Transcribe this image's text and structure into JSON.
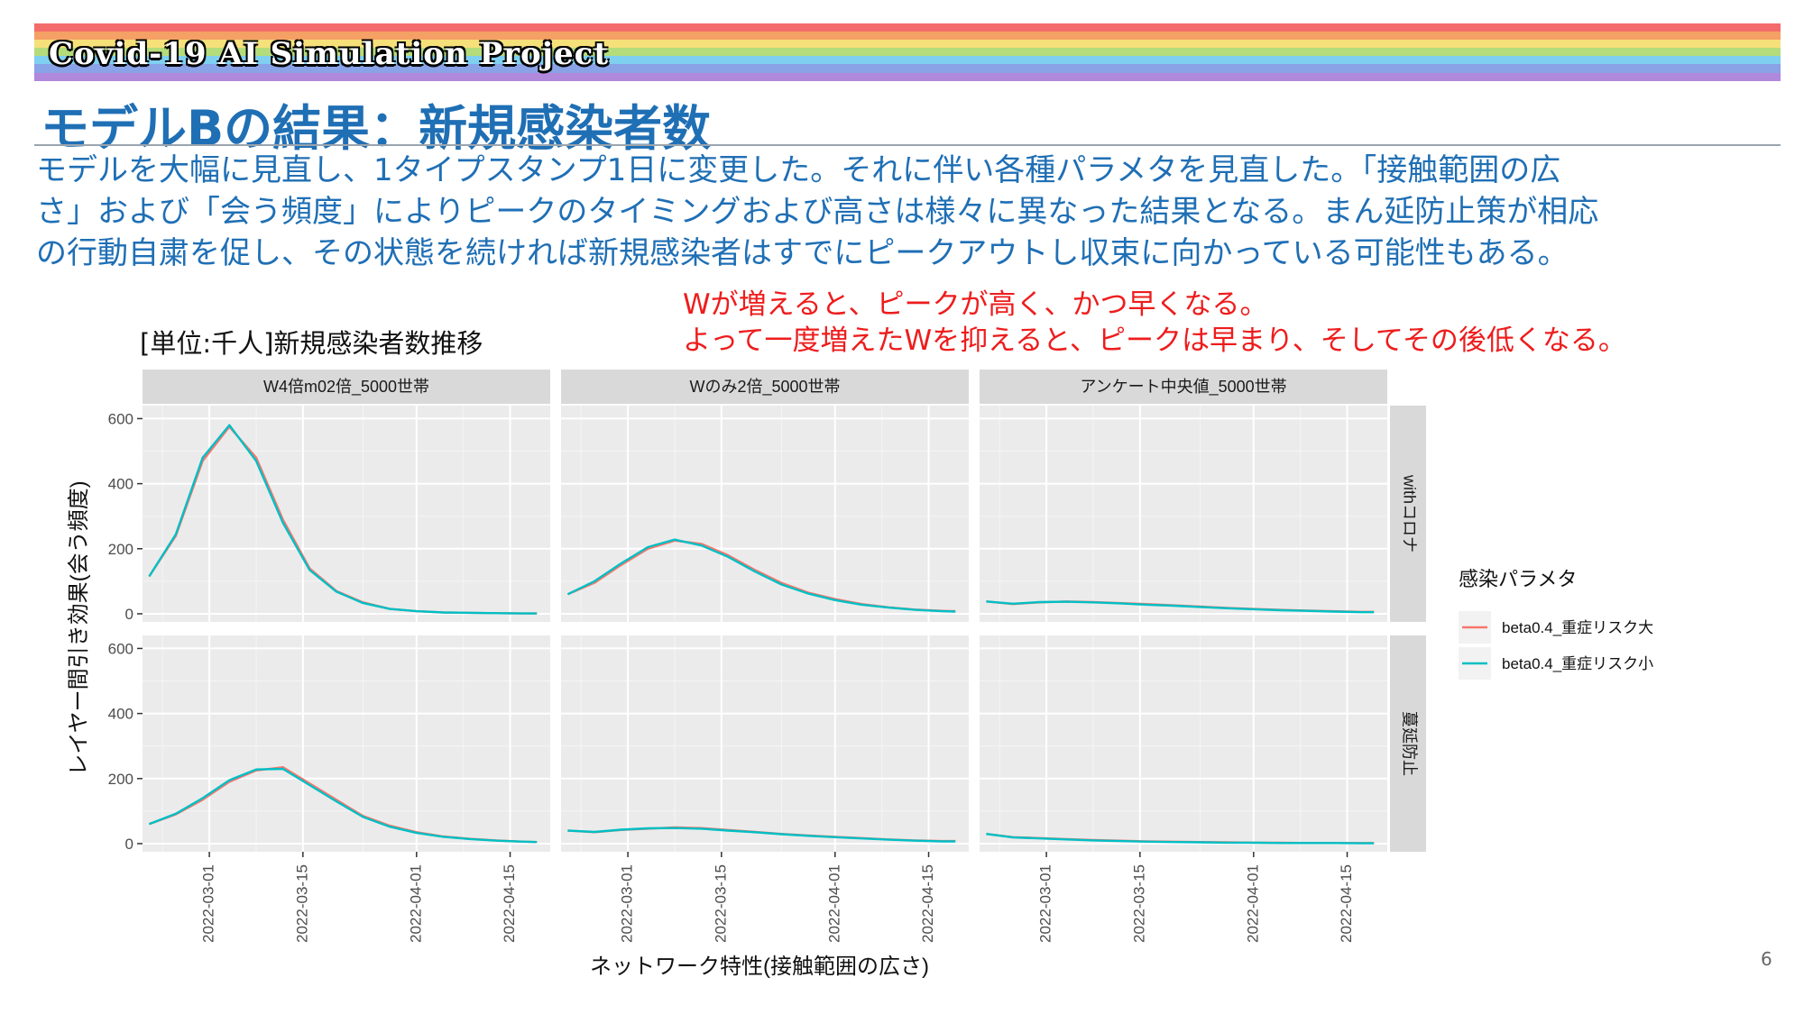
{
  "banner": {
    "title": "Covid-19 AI Simulation Project",
    "stripes": [
      "#f36b6b",
      "#f5a064",
      "#f6e07a",
      "#b5dc7a",
      "#7fcff0",
      "#8aa2e6",
      "#b088dc"
    ]
  },
  "slide_title": "モデルBの結果：新規感染者数",
  "body_lines": [
    "モデルを大幅に見直し、1タイプスタンプ1日に変更した。それに伴い各種パラメタを見直した。「接触範囲の広",
    "さ」および「会う頻度」によりピークのタイミングおよび高さは様々に異なった結果となる。まん延防止策が相応",
    "の行動自粛を促し、その状態を続ければ新規感染者はすでにピークアウトし収束に向かっている可能性もある。"
  ],
  "notes": [
    "Wが増えると、ピークが高く、かつ早くなる。",
    "よって一度増えたWを抑えると、ピークは早まり、そしてその後低くなる。"
  ],
  "page_number": "6",
  "colors": {
    "accent": "#1F6FB5",
    "note": "#ee1c1c",
    "series_a": "#F8766D",
    "series_b": "#00BFC4"
  },
  "chart_data": {
    "type": "line",
    "title": "[単位:千人]新規感染者数推移",
    "xlabel": "ネットワーク特性(接触範囲の広さ)",
    "ylabel": "レイヤー間引き効果(会う頻度)",
    "x_ticks": [
      "2022-03-01",
      "2022-03-15",
      "2022-04-01",
      "2022-04-15"
    ],
    "x_range": [
      "2022-02-19",
      "2022-04-21"
    ],
    "y_ticks": [
      0,
      200,
      400,
      600
    ],
    "ylim": [
      -25,
      640
    ],
    "col_facets": [
      "W4倍m02倍_5000世帯",
      "Wのみ2倍_5000世帯",
      "アンケート中央値_5000世帯"
    ],
    "row_facets": [
      "withコロナ",
      "蔓延防止"
    ],
    "legend": {
      "title": "感染パラメタ",
      "position": "right",
      "entries": [
        "beta0.4_重症リスク大",
        "beta0.4_重症リスク小"
      ]
    },
    "dates": [
      "2022-02-20",
      "2022-02-24",
      "2022-02-28",
      "2022-03-04",
      "2022-03-08",
      "2022-03-12",
      "2022-03-16",
      "2022-03-20",
      "2022-03-24",
      "2022-03-28",
      "2022-04-01",
      "2022-04-05",
      "2022-04-09",
      "2022-04-13",
      "2022-04-17",
      "2022-04-19"
    ],
    "panels": [
      {
        "row": "withコロナ",
        "col": "W4倍m02倍_5000世帯",
        "series": [
          {
            "name": "beta0.4_重症リスク大",
            "values": [
              115,
              240,
              470,
              575,
              480,
              290,
              140,
              70,
              35,
              15,
              8,
              4,
              3,
              2,
              1,
              1
            ]
          },
          {
            "name": "beta0.4_重症リスク小",
            "values": [
              115,
              245,
              480,
              580,
              470,
              280,
              135,
              68,
              33,
              15,
              8,
              4,
              3,
              2,
              1,
              1
            ]
          }
        ]
      },
      {
        "row": "withコロナ",
        "col": "Wのみ2倍_5000世帯",
        "series": [
          {
            "name": "beta0.4_重症リスク大",
            "values": [
              60,
              95,
              150,
              200,
              225,
              215,
              180,
              135,
              95,
              65,
              45,
              30,
              20,
              13,
              9,
              8
            ]
          },
          {
            "name": "beta0.4_重症リスク小",
            "values": [
              60,
              100,
              155,
              205,
              228,
              210,
              175,
              130,
              90,
              62,
              42,
              28,
              19,
              12,
              8,
              7
            ]
          }
        ]
      },
      {
        "row": "withコロナ",
        "col": "アンケート中央値_5000世帯",
        "series": [
          {
            "name": "beta0.4_重症リスク大",
            "values": [
              38,
              30,
              35,
              38,
              36,
              33,
              30,
              26,
              22,
              18,
              15,
              12,
              10,
              8,
              6,
              6
            ]
          },
          {
            "name": "beta0.4_重症リスク小",
            "values": [
              38,
              31,
              36,
              37,
              35,
              32,
              28,
              25,
              21,
              17,
              14,
              11,
              9,
              7,
              5,
              5
            ]
          }
        ]
      },
      {
        "row": "蔓延防止",
        "col": "W4倍m02倍_5000世帯",
        "series": [
          {
            "name": "beta0.4_重症リスク大",
            "values": [
              60,
              90,
              135,
              190,
              225,
              235,
              185,
              135,
              85,
              55,
              35,
              22,
              15,
              10,
              6,
              5
            ]
          },
          {
            "name": "beta0.4_重症リスク小",
            "values": [
              60,
              92,
              140,
              195,
              228,
              230,
              180,
              130,
              82,
              52,
              33,
              21,
              14,
              9,
              6,
              5
            ]
          }
        ]
      },
      {
        "row": "蔓延防止",
        "col": "Wのみ2倍_5000世帯",
        "series": [
          {
            "name": "beta0.4_重症リスク大",
            "values": [
              40,
              35,
              42,
              46,
              50,
              48,
              42,
              36,
              30,
              25,
              21,
              17,
              13,
              10,
              8,
              8
            ]
          },
          {
            "name": "beta0.4_重症リスク小",
            "values": [
              40,
              36,
              43,
              47,
              48,
              46,
              40,
              35,
              29,
              24,
              20,
              16,
              12,
              9,
              7,
              7
            ]
          }
        ]
      },
      {
        "row": "蔓延防止",
        "col": "アンケート中央値_5000世帯",
        "series": [
          {
            "name": "beta0.4_重症リスク大",
            "values": [
              30,
              20,
              17,
              14,
              11,
              9,
              7,
              6,
              5,
              4,
              3,
              3,
              2,
              2,
              2,
              2
            ]
          },
          {
            "name": "beta0.4_重症リスク小",
            "values": [
              30,
              19,
              16,
              13,
              10,
              8,
              6,
              5,
              4,
              3,
              3,
              2,
              2,
              2,
              1,
              1
            ]
          }
        ]
      }
    ]
  }
}
